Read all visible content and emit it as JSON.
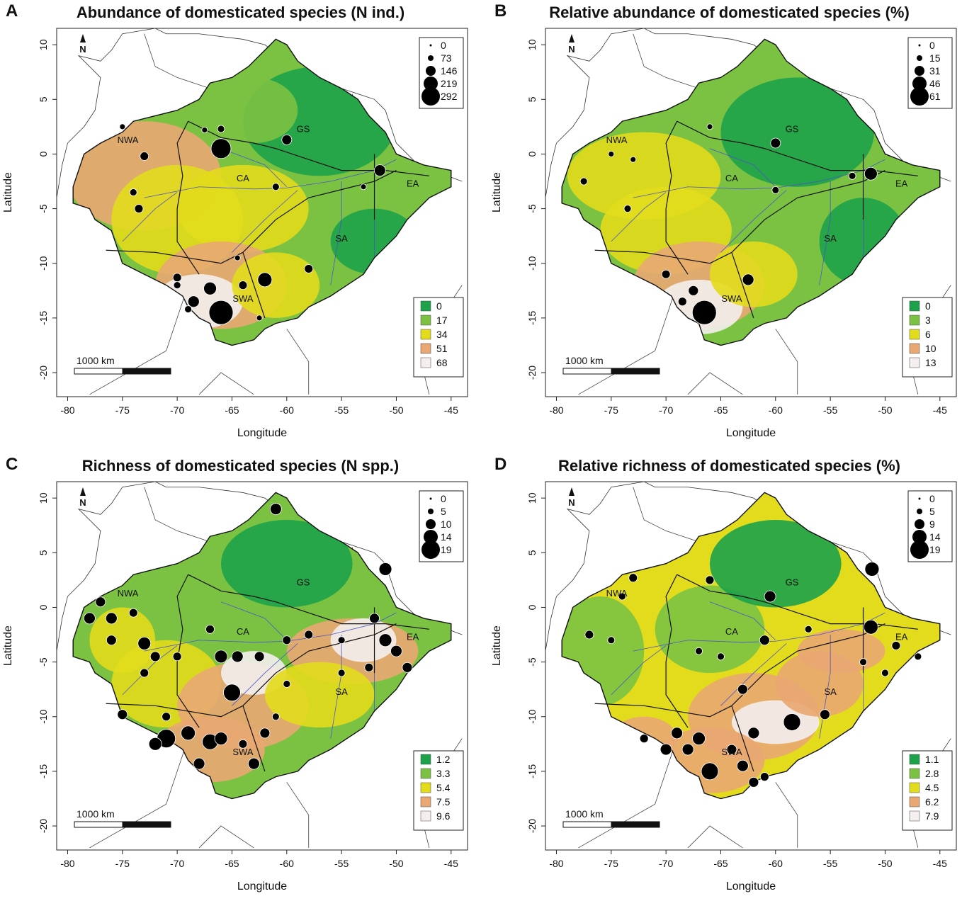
{
  "axes": {
    "x_label": "Longitude",
    "y_label": "Latitude",
    "x_ticks": [
      "-80",
      "-75",
      "-70",
      "-65",
      "-60",
      "-55",
      "-50",
      "-45"
    ],
    "y_ticks": [
      "10",
      "5",
      "0",
      "-5",
      "-10",
      "-15",
      "-20"
    ]
  },
  "scale_bar_label": "1000 km",
  "north_label": "N",
  "regions": [
    "NWA",
    "GS",
    "CA",
    "EA",
    "SA",
    "SWA"
  ],
  "colors": {
    "c0": "#1da24a",
    "c1": "#7cc242",
    "c2": "#e2dc1c",
    "c3": "#e9a772",
    "c4": "#f4eeee"
  },
  "panels": [
    {
      "letter": "A",
      "title": "Abundance of domesticated species (N ind.)",
      "size_legend": [
        "0",
        "73",
        "146",
        "219",
        "292"
      ],
      "color_legend": [
        "0",
        "17",
        "34",
        "51",
        "68"
      ]
    },
    {
      "letter": "B",
      "title": "Relative abundance of domesticated species (%)",
      "size_legend": [
        "0",
        "15",
        "31",
        "46",
        "61"
      ],
      "color_legend": [
        "0",
        "3",
        "6",
        "10",
        "13"
      ]
    },
    {
      "letter": "C",
      "title": "Richness of domesticated species (N spp.)",
      "size_legend": [
        "0",
        "5",
        "10",
        "14",
        "19"
      ],
      "color_legend": [
        "1.2",
        "3.3",
        "5.4",
        "7.5",
        "9.6"
      ]
    },
    {
      "letter": "D",
      "title": "Relative richness of domesticated species (%)",
      "size_legend": [
        "0",
        "5",
        "9",
        "14",
        "19"
      ],
      "color_legend": [
        "1.1",
        "2.8",
        "4.5",
        "6.2",
        "7.9"
      ]
    }
  ]
}
